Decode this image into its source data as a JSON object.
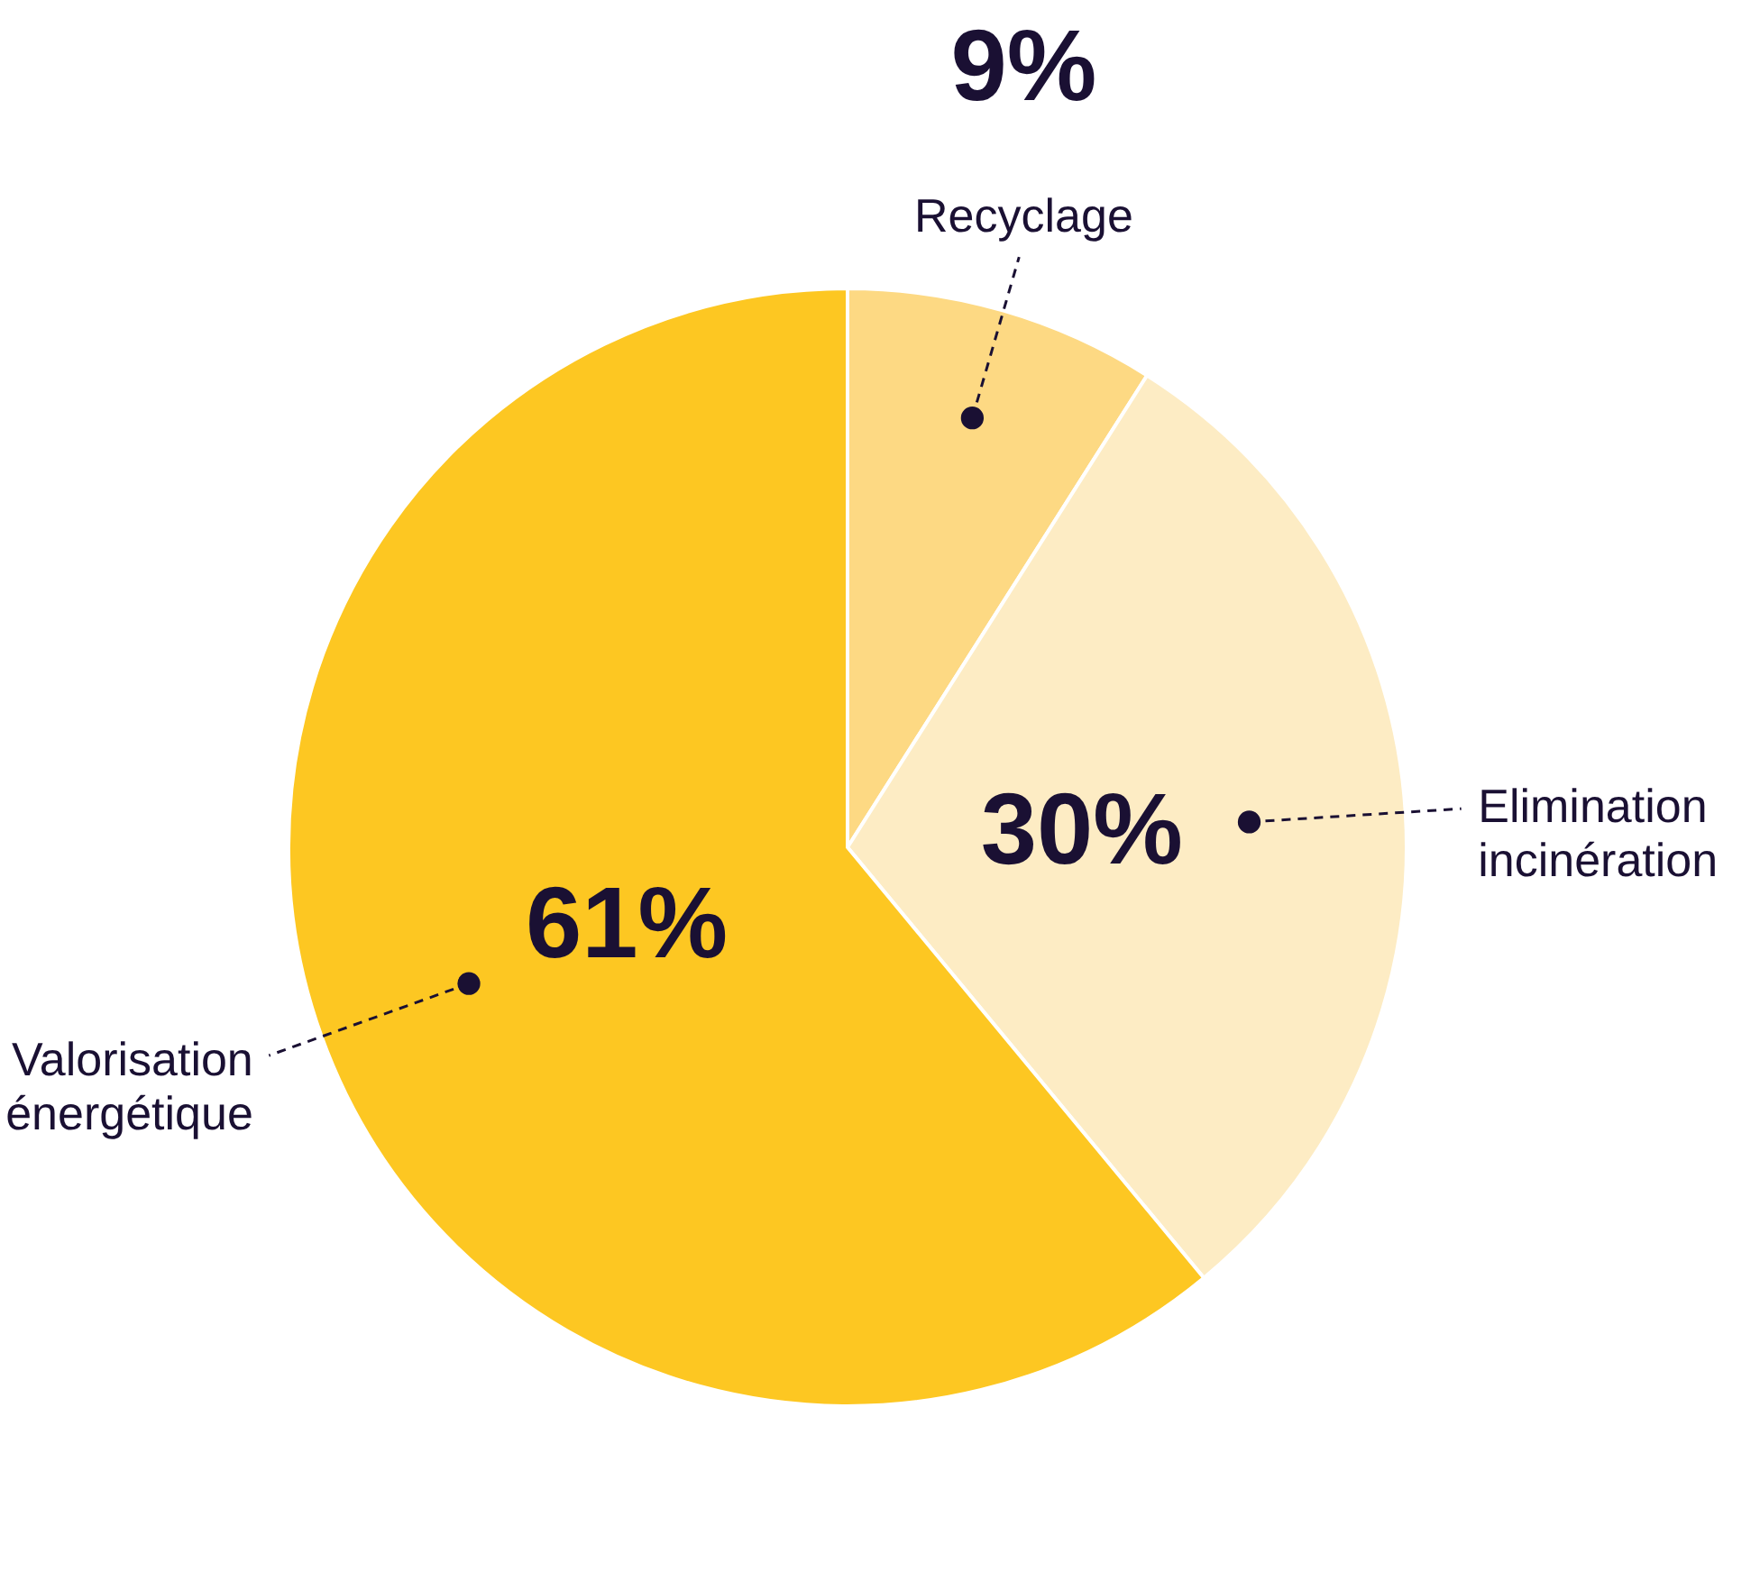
{
  "chart_data": {
    "type": "pie",
    "categories": [
      "Recyclage",
      "Elimination incinération",
      "Valorisation énergétique"
    ],
    "values": [
      9,
      30,
      61
    ],
    "colors": [
      "#fdd983",
      "#fdecc4",
      "#fdc722"
    ],
    "value_labels": [
      "9%",
      "30%",
      "61%"
    ]
  }
}
